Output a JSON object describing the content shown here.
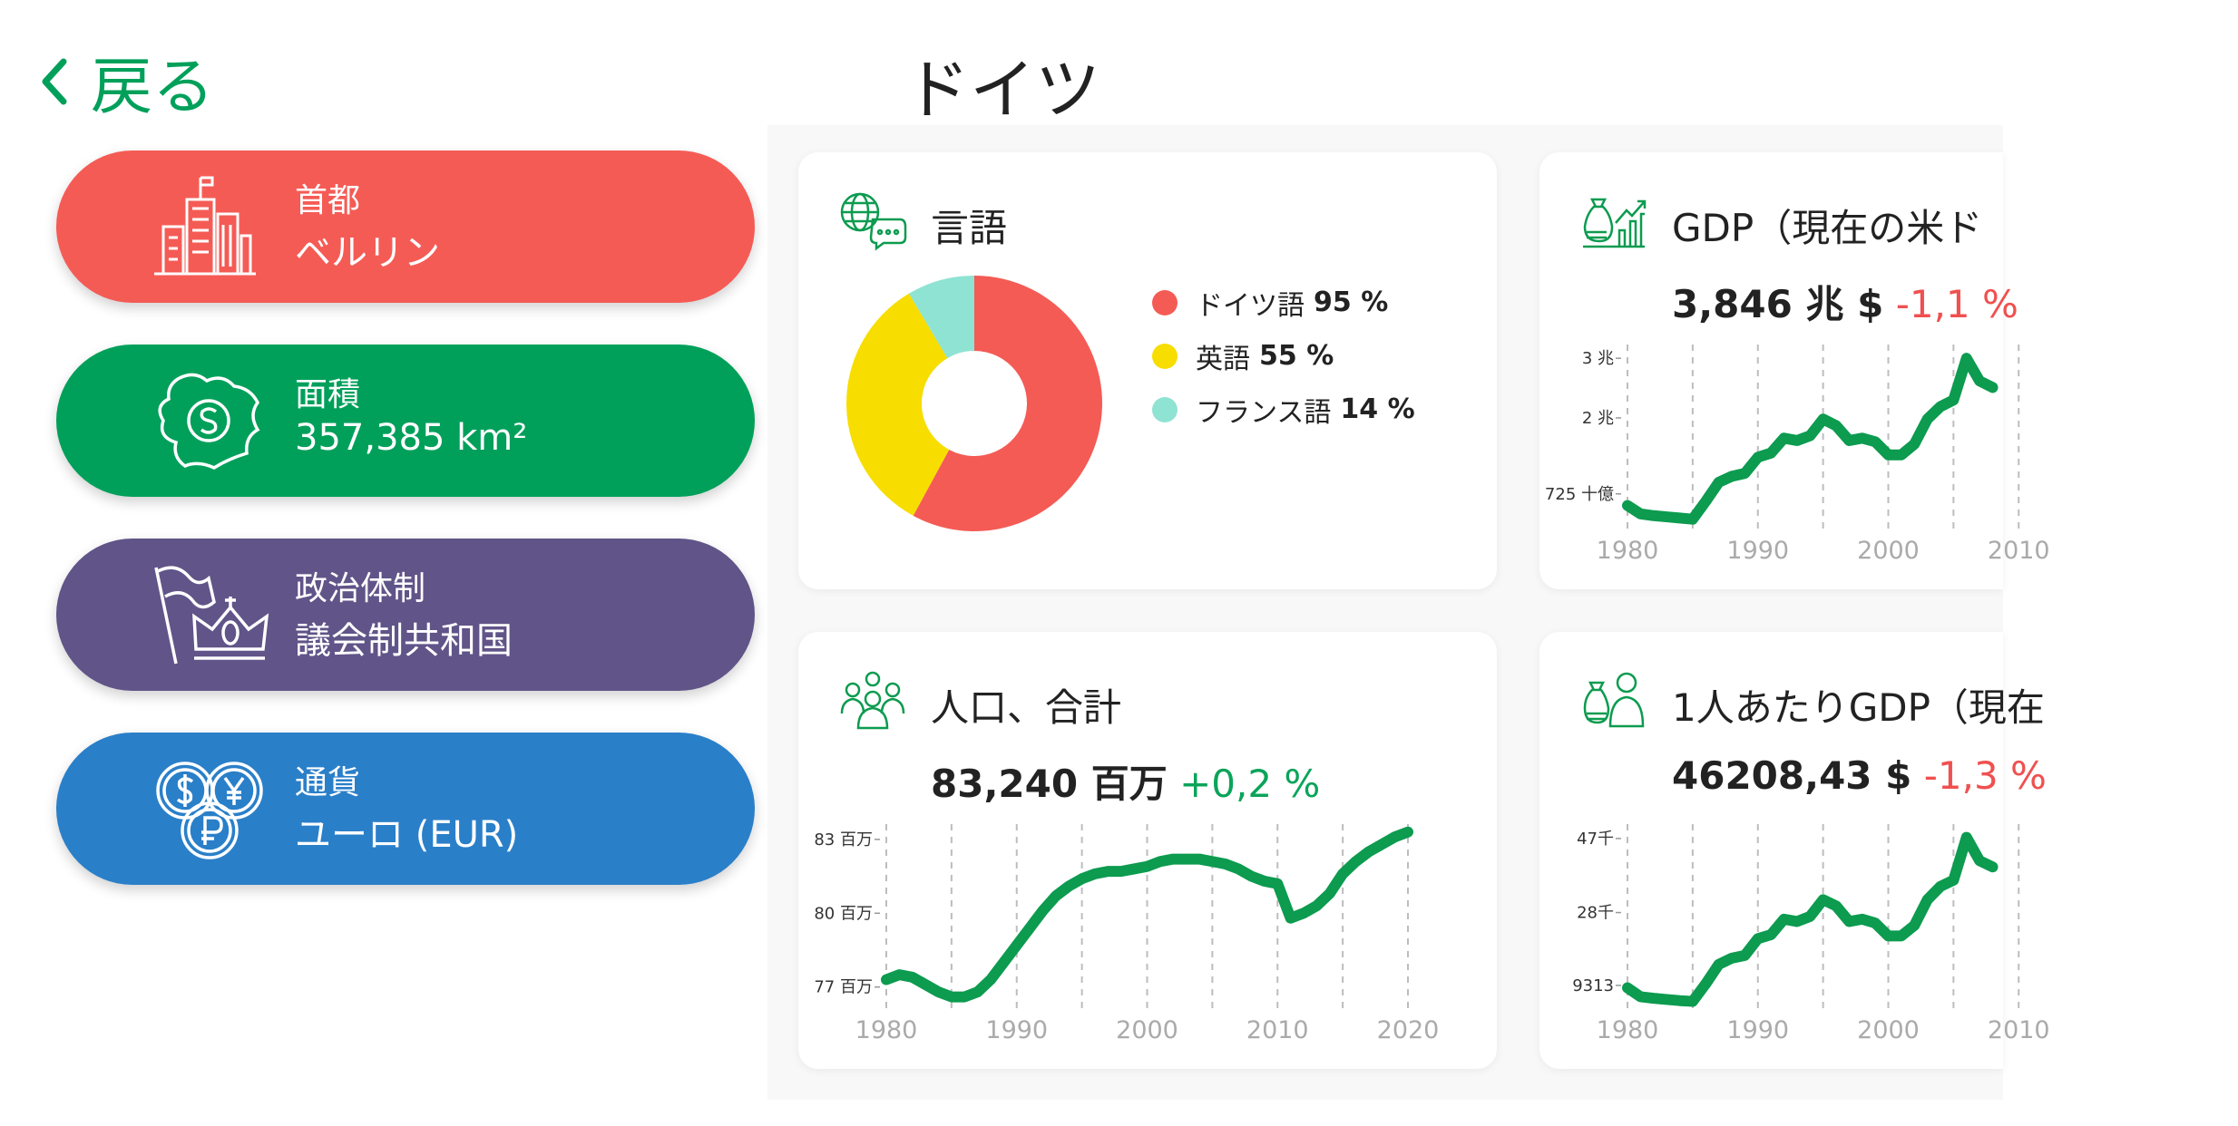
{
  "header": {
    "back": "戻る",
    "title": "ドイツ"
  },
  "facts": [
    {
      "label": "首都",
      "value": "ベルリン",
      "color": "#f55b55"
    },
    {
      "label": "面積",
      "value": "357,385 km²",
      "color": "#00a05a"
    },
    {
      "label": "政治体制",
      "value": "議会制共和国",
      "color": "#615488"
    },
    {
      "label": "通貨",
      "value": "ユーロ (EUR)",
      "color": "#2a7fc9"
    }
  ],
  "chart_data": [
    {
      "type": "pie",
      "title": "言語",
      "categories": [
        "ドイツ語",
        "英語",
        "フランス語"
      ],
      "values": [
        95,
        55,
        14
      ],
      "value_labels": [
        "95 %",
        "55 %",
        "14 %"
      ],
      "colors": [
        "#f45b55",
        "#f7dd00",
        "#8fe3d3"
      ]
    },
    {
      "type": "line",
      "title": "GDP（現在の米ド",
      "headline": "3,846 兆 $",
      "change": "-1,1 %",
      "change_color": "#f05050",
      "color": "#0c9b4f",
      "x": [
        1980,
        1981,
        1982,
        1983,
        1984,
        1985,
        1986,
        1987,
        1988,
        1989,
        1990,
        1991,
        1992,
        1993,
        1994,
        1995,
        1996,
        1997,
        1998,
        1999,
        2000,
        2001,
        2002,
        2003,
        2004,
        2005,
        2006,
        2007,
        2008
      ],
      "values": [
        0.53,
        0.39,
        0.36,
        0.34,
        0.32,
        0.3,
        0.6,
        0.92,
        1.02,
        1.07,
        1.34,
        1.41,
        1.66,
        1.62,
        1.7,
        1.98,
        1.87,
        1.62,
        1.66,
        1.6,
        1.38,
        1.38,
        1.56,
        1.98,
        2.19,
        2.3,
        3.0,
        2.62,
        2.51
      ],
      "xlim": [
        1980,
        2020
      ],
      "ylim": [
        0.25,
        3.14
      ],
      "xticks": [
        1980,
        1990,
        2000,
        2010
      ],
      "xgrid": [
        1980,
        1985,
        1990,
        1995,
        2000,
        2005,
        2010
      ],
      "yticks": [
        {
          "value": 0.725,
          "label": "725 十億"
        },
        {
          "value": 2,
          "label": "2 兆"
        },
        {
          "value": 3,
          "label": "3 兆"
        }
      ]
    },
    {
      "type": "line",
      "title": "人口、合計",
      "headline": "83,240 百万",
      "change": "+0,2 %",
      "change_color": "#0ba45a",
      "color": "#0c9b4f",
      "x": [
        1980,
        1981,
        1982,
        1983,
        1984,
        1985,
        1986,
        1987,
        1988,
        1989,
        1990,
        1991,
        1992,
        1993,
        1994,
        1995,
        1996,
        1997,
        1998,
        1999,
        2000,
        2001,
        2002,
        2003,
        2004,
        2005,
        2006,
        2007,
        2008,
        2009,
        2010,
        2011,
        2012,
        2013,
        2014,
        2015,
        2016,
        2017,
        2018,
        2019,
        2020
      ],
      "values": [
        77.3,
        77.5,
        77.4,
        77.1,
        76.8,
        76.6,
        76.6,
        76.8,
        77.3,
        78.0,
        78.7,
        79.4,
        80.1,
        80.7,
        81.1,
        81.4,
        81.6,
        81.7,
        81.7,
        81.8,
        81.9,
        82.1,
        82.2,
        82.2,
        82.2,
        82.1,
        82.0,
        81.8,
        81.5,
        81.3,
        81.2,
        79.8,
        80.0,
        80.3,
        80.8,
        81.6,
        82.1,
        82.5,
        82.8,
        83.1,
        83.3
      ],
      "xlim": [
        1980,
        2020
      ],
      "ylim": [
        76.4,
        83.4
      ],
      "xticks": [
        1980,
        1990,
        2000,
        2010,
        2020
      ],
      "xgrid": [
        1980,
        1985,
        1990,
        1995,
        2000,
        2005,
        2010,
        2015,
        2020
      ],
      "yticks": [
        {
          "value": 77,
          "label": "77 百万"
        },
        {
          "value": 80,
          "label": "80 百万"
        },
        {
          "value": 83,
          "label": "83 百万"
        }
      ]
    },
    {
      "type": "line",
      "title": "1人あたりGDP（現在",
      "headline": "46208,43 $",
      "change": "-1,3 %",
      "change_color": "#f05050",
      "color": "#0c9b4f",
      "x": [
        1980,
        1981,
        1982,
        1983,
        1984,
        1985,
        1986,
        1987,
        1988,
        1989,
        1990,
        1991,
        1992,
        1993,
        1994,
        1995,
        1996,
        1997,
        1998,
        1999,
        2000,
        2001,
        2002,
        2003,
        2004,
        2005,
        2006,
        2007,
        2008
      ],
      "values": [
        8700,
        6400,
        6000,
        5700,
        5400,
        5200,
        9700,
        14700,
        16300,
        17000,
        21300,
        22300,
        26300,
        25700,
        27000,
        31300,
        29700,
        25700,
        26300,
        25300,
        22000,
        22000,
        24700,
        31300,
        34700,
        36300,
        47300,
        41300,
        39700
      ],
      "xlim": [
        1980,
        2020
      ],
      "ylim": [
        5100,
        49300
      ],
      "xticks": [
        1980,
        1990,
        2000,
        2010
      ],
      "xgrid": [
        1980,
        1985,
        1990,
        1995,
        2000,
        2005,
        2010
      ],
      "yticks": [
        9313,
        {
          "value": 28000,
          "label": "28千"
        },
        {
          "value": 47000,
          "label": "47千"
        }
      ]
    }
  ]
}
